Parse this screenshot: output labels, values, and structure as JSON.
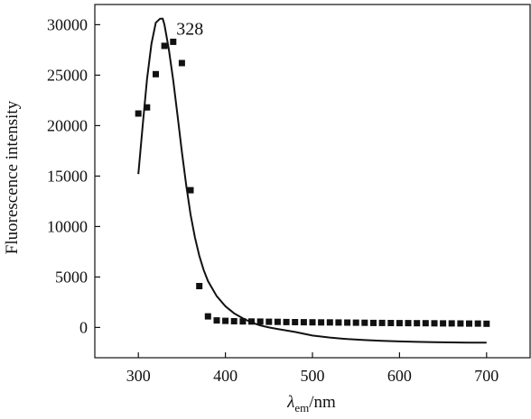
{
  "chart_data": {
    "type": "scatter",
    "title": "",
    "xlabel": {
      "symbol": "λ",
      "subscript": "em",
      "unit": "/nm"
    },
    "ylabel": "Fluorescence intensity",
    "xlim": [
      250,
      750
    ],
    "ylim": [
      -3000,
      32000
    ],
    "xticks": [
      300,
      400,
      500,
      600,
      700
    ],
    "yticks": [
      0,
      5000,
      10000,
      15000,
      20000,
      25000,
      30000
    ],
    "grid": false,
    "legend": "none",
    "annotation": {
      "text": "328",
      "x": 328,
      "y": 30600
    },
    "series": [
      {
        "kind": "points",
        "color": "#111111",
        "x": [
          300,
          310,
          320,
          330,
          340,
          350,
          360,
          370,
          380,
          390,
          400,
          410,
          420,
          430,
          440,
          450,
          460,
          470,
          480,
          490,
          500,
          510,
          520,
          530,
          540,
          550,
          560,
          570,
          580,
          590,
          600,
          610,
          620,
          630,
          640,
          650,
          660,
          670,
          680,
          690,
          700
        ],
        "y": [
          21200,
          21800,
          25100,
          27900,
          28300,
          26200,
          13600,
          4100,
          1100,
          700,
          650,
          620,
          600,
          590,
          580,
          560,
          550,
          540,
          530,
          520,
          510,
          500,
          500,
          490,
          480,
          470,
          460,
          450,
          450,
          440,
          430,
          430,
          420,
          420,
          410,
          400,
          400,
          390,
          380,
          380,
          370
        ]
      },
      {
        "kind": "fit-line",
        "color": "#111111",
        "x": [
          300,
          305,
          310,
          315,
          320,
          325,
          328,
          330,
          335,
          340,
          345,
          350,
          355,
          360,
          365,
          370,
          375,
          380,
          390,
          400,
          410,
          420,
          430,
          440,
          450,
          460,
          480,
          500,
          520,
          540,
          560,
          580,
          600,
          620,
          640,
          660,
          680,
          700
        ],
        "y": [
          15200,
          20000,
          24600,
          28100,
          30200,
          30600,
          30600,
          30000,
          27600,
          24500,
          21000,
          17400,
          14100,
          11200,
          8900,
          7100,
          5700,
          4600,
          3100,
          2100,
          1400,
          900,
          500,
          200,
          0,
          -150,
          -450,
          -800,
          -1000,
          -1150,
          -1250,
          -1320,
          -1380,
          -1430,
          -1460,
          -1480,
          -1500,
          -1510
        ]
      }
    ]
  }
}
